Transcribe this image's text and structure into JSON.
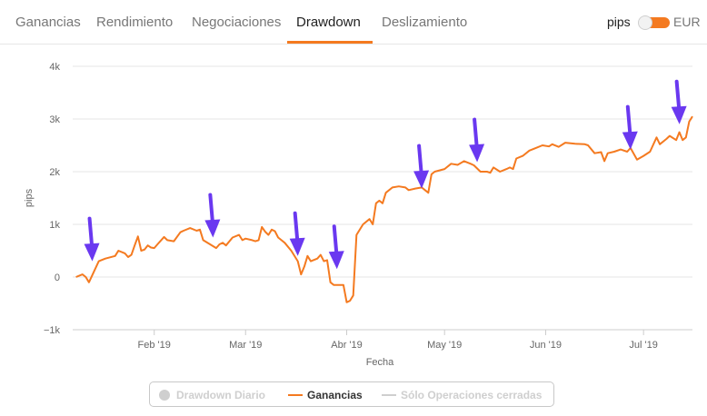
{
  "tabs": [
    {
      "label": "Ganancias",
      "active": false
    },
    {
      "label": "Rendimiento",
      "active": false
    },
    {
      "label": "Negociaciones",
      "active": false
    },
    {
      "label": "Drawdown",
      "active": true
    },
    {
      "label": "Deslizamiento",
      "active": false
    }
  ],
  "unit_toggle": {
    "left_label": "pips",
    "right_label": "EUR",
    "selected": "pips"
  },
  "legend": {
    "items": [
      {
        "label": "Drawdown Diario",
        "enabled": false
      },
      {
        "label": "Ganancias",
        "enabled": true,
        "color": "#f47a20"
      },
      {
        "label": "Sólo Operaciones cerradas",
        "enabled": false
      }
    ]
  },
  "colors": {
    "series": "#f47a20",
    "annotation_arrow": "#6a38f0",
    "grid": "#e6e6e6"
  },
  "chart_data": {
    "type": "line",
    "xlabel": "Fecha",
    "ylabel": "pips",
    "ylim": [
      -1000,
      4000
    ],
    "yticks": [
      {
        "value": 4000,
        "label": "4k"
      },
      {
        "value": 3000,
        "label": "3k"
      },
      {
        "value": 2000,
        "label": "2k"
      },
      {
        "value": 1000,
        "label": "1k"
      },
      {
        "value": 0,
        "label": "0"
      },
      {
        "value": -1000,
        "label": "−1k"
      }
    ],
    "xlim": [
      "2019-01-07",
      "2019-07-16"
    ],
    "xticks": [
      {
        "date": "2019-02-01",
        "label": "Feb '19"
      },
      {
        "date": "2019-03-01",
        "label": "Mar '19"
      },
      {
        "date": "2019-04-01",
        "label": "Abr '19"
      },
      {
        "date": "2019-05-01",
        "label": "May '19"
      },
      {
        "date": "2019-06-01",
        "label": "Jun '19"
      },
      {
        "date": "2019-07-01",
        "label": "Jul '19"
      }
    ],
    "grid": true,
    "legend_position": "bottom",
    "series": [
      {
        "name": "Ganancias",
        "color": "#f47a20",
        "points": [
          [
            "2019-01-08",
            0
          ],
          [
            "2019-01-10",
            50
          ],
          [
            "2019-01-11",
            0
          ],
          [
            "2019-01-12",
            -100
          ],
          [
            "2019-01-15",
            300
          ],
          [
            "2019-01-17",
            350
          ],
          [
            "2019-01-20",
            400
          ],
          [
            "2019-01-21",
            500
          ],
          [
            "2019-01-23",
            450
          ],
          [
            "2019-01-24",
            380
          ],
          [
            "2019-01-25",
            420
          ],
          [
            "2019-01-26",
            600
          ],
          [
            "2019-01-27",
            770
          ],
          [
            "2019-01-28",
            500
          ],
          [
            "2019-01-29",
            520
          ],
          [
            "2019-01-30",
            600
          ],
          [
            "2019-01-31",
            560
          ],
          [
            "2019-02-01",
            550
          ],
          [
            "2019-02-02",
            620
          ],
          [
            "2019-02-04",
            760
          ],
          [
            "2019-02-05",
            700
          ],
          [
            "2019-02-07",
            680
          ],
          [
            "2019-02-09",
            850
          ],
          [
            "2019-02-10",
            880
          ],
          [
            "2019-02-12",
            930
          ],
          [
            "2019-02-14",
            880
          ],
          [
            "2019-02-15",
            900
          ],
          [
            "2019-02-16",
            700
          ],
          [
            "2019-02-20",
            550
          ],
          [
            "2019-02-21",
            620
          ],
          [
            "2019-02-22",
            650
          ],
          [
            "2019-02-23",
            600
          ],
          [
            "2019-02-25",
            750
          ],
          [
            "2019-02-27",
            800
          ],
          [
            "2019-02-28",
            700
          ],
          [
            "2019-03-01",
            730
          ],
          [
            "2019-03-03",
            700
          ],
          [
            "2019-03-04",
            680
          ],
          [
            "2019-03-05",
            700
          ],
          [
            "2019-03-06",
            950
          ],
          [
            "2019-03-07",
            860
          ],
          [
            "2019-03-08",
            800
          ],
          [
            "2019-03-09",
            900
          ],
          [
            "2019-03-10",
            870
          ],
          [
            "2019-03-11",
            750
          ],
          [
            "2019-03-12",
            700
          ],
          [
            "2019-03-13",
            650
          ],
          [
            "2019-03-15",
            500
          ],
          [
            "2019-03-17",
            300
          ],
          [
            "2019-03-18",
            50
          ],
          [
            "2019-03-19",
            200
          ],
          [
            "2019-03-20",
            400
          ],
          [
            "2019-03-21",
            300
          ],
          [
            "2019-03-23",
            350
          ],
          [
            "2019-03-24",
            420
          ],
          [
            "2019-03-25",
            300
          ],
          [
            "2019-03-26",
            320
          ],
          [
            "2019-03-27",
            -100
          ],
          [
            "2019-03-28",
            -150
          ],
          [
            "2019-03-29",
            -150
          ],
          [
            "2019-03-31",
            -150
          ],
          [
            "2019-04-01",
            -480
          ],
          [
            "2019-04-02",
            -450
          ],
          [
            "2019-04-03",
            -350
          ],
          [
            "2019-04-04",
            800
          ],
          [
            "2019-04-06",
            1000
          ],
          [
            "2019-04-08",
            1100
          ],
          [
            "2019-04-09",
            1000
          ],
          [
            "2019-04-10",
            1400
          ],
          [
            "2019-04-11",
            1450
          ],
          [
            "2019-04-12",
            1400
          ],
          [
            "2019-04-13",
            1600
          ],
          [
            "2019-04-15",
            1700
          ],
          [
            "2019-04-17",
            1720
          ],
          [
            "2019-04-19",
            1700
          ],
          [
            "2019-04-20",
            1650
          ],
          [
            "2019-04-22",
            1680
          ],
          [
            "2019-04-24",
            1700
          ],
          [
            "2019-04-25",
            1650
          ],
          [
            "2019-04-26",
            1600
          ],
          [
            "2019-04-27",
            1950
          ],
          [
            "2019-04-28",
            2000
          ],
          [
            "2019-05-01",
            2050
          ],
          [
            "2019-05-03",
            2150
          ],
          [
            "2019-05-05",
            2130
          ],
          [
            "2019-05-07",
            2200
          ],
          [
            "2019-05-09",
            2150
          ],
          [
            "2019-05-10",
            2120
          ],
          [
            "2019-05-12",
            2000
          ],
          [
            "2019-05-14",
            2000
          ],
          [
            "2019-05-15",
            1980
          ],
          [
            "2019-05-16",
            2080
          ],
          [
            "2019-05-18",
            2000
          ],
          [
            "2019-05-20",
            2050
          ],
          [
            "2019-05-21",
            2080
          ],
          [
            "2019-05-22",
            2050
          ],
          [
            "2019-05-23",
            2250
          ],
          [
            "2019-05-25",
            2300
          ],
          [
            "2019-05-27",
            2400
          ],
          [
            "2019-05-29",
            2450
          ],
          [
            "2019-05-31",
            2500
          ],
          [
            "2019-06-02",
            2480
          ],
          [
            "2019-06-03",
            2520
          ],
          [
            "2019-06-05",
            2470
          ],
          [
            "2019-06-07",
            2550
          ],
          [
            "2019-06-10",
            2530
          ],
          [
            "2019-06-13",
            2520
          ],
          [
            "2019-06-14",
            2500
          ],
          [
            "2019-06-16",
            2350
          ],
          [
            "2019-06-18",
            2370
          ],
          [
            "2019-06-19",
            2200
          ],
          [
            "2019-06-20",
            2350
          ],
          [
            "2019-06-22",
            2380
          ],
          [
            "2019-06-24",
            2420
          ],
          [
            "2019-06-26",
            2380
          ],
          [
            "2019-06-27",
            2450
          ],
          [
            "2019-06-29",
            2230
          ],
          [
            "2019-07-01",
            2300
          ],
          [
            "2019-07-03",
            2380
          ],
          [
            "2019-07-05",
            2650
          ],
          [
            "2019-07-06",
            2520
          ],
          [
            "2019-07-08",
            2620
          ],
          [
            "2019-07-09",
            2680
          ],
          [
            "2019-07-11",
            2600
          ],
          [
            "2019-07-12",
            2750
          ],
          [
            "2019-07-13",
            2600
          ],
          [
            "2019-07-14",
            2650
          ],
          [
            "2019-07-15",
            2950
          ],
          [
            "2019-07-16",
            3050
          ]
        ]
      }
    ],
    "annotations": [
      {
        "type": "arrow",
        "date": "2019-01-13",
        "value": 300,
        "color": "#6a38f0"
      },
      {
        "type": "arrow",
        "date": "2019-02-19",
        "value": 750,
        "color": "#6a38f0"
      },
      {
        "type": "arrow",
        "date": "2019-03-17",
        "value": 400,
        "color": "#6a38f0"
      },
      {
        "type": "arrow",
        "date": "2019-03-29",
        "value": 150,
        "color": "#6a38f0"
      },
      {
        "type": "arrow",
        "date": "2019-04-24",
        "value": 1680,
        "color": "#6a38f0"
      },
      {
        "type": "arrow",
        "date": "2019-05-11",
        "value": 2180,
        "color": "#6a38f0"
      },
      {
        "type": "arrow",
        "date": "2019-06-27",
        "value": 2420,
        "color": "#6a38f0"
      },
      {
        "type": "arrow",
        "date": "2019-07-12",
        "value": 2900,
        "color": "#6a38f0"
      }
    ]
  }
}
